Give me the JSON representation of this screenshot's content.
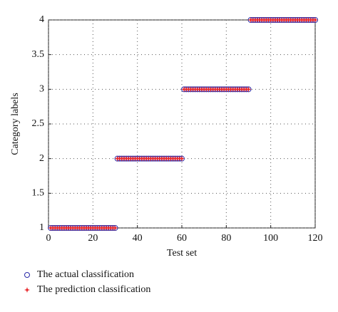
{
  "chart_data": {
    "type": "scatter",
    "x_label": "Test set",
    "y_label": "Category labels",
    "x": [
      1,
      2,
      3,
      4,
      5,
      6,
      7,
      8,
      9,
      10,
      11,
      12,
      13,
      14,
      15,
      16,
      17,
      18,
      19,
      20,
      21,
      22,
      23,
      24,
      25,
      26,
      27,
      28,
      29,
      30,
      31,
      32,
      33,
      34,
      35,
      36,
      37,
      38,
      39,
      40,
      41,
      42,
      43,
      44,
      45,
      46,
      47,
      48,
      49,
      50,
      51,
      52,
      53,
      54,
      55,
      56,
      57,
      58,
      59,
      60,
      61,
      62,
      63,
      64,
      65,
      66,
      67,
      68,
      69,
      70,
      71,
      72,
      73,
      74,
      75,
      76,
      77,
      78,
      79,
      80,
      81,
      82,
      83,
      84,
      85,
      86,
      87,
      88,
      89,
      90,
      91,
      92,
      93,
      94,
      95,
      96,
      97,
      98,
      99,
      100,
      101,
      102,
      103,
      104,
      105,
      106,
      107,
      108,
      109,
      110,
      111,
      112,
      113,
      114,
      115,
      116,
      117,
      118,
      119,
      120
    ],
    "series": [
      {
        "name": "The actual classification",
        "color": "#2a2aa8",
        "marker": "circle",
        "values": [
          1,
          1,
          1,
          1,
          1,
          1,
          1,
          1,
          1,
          1,
          1,
          1,
          1,
          1,
          1,
          1,
          1,
          1,
          1,
          1,
          1,
          1,
          1,
          1,
          1,
          1,
          1,
          1,
          1,
          1,
          2,
          2,
          2,
          2,
          2,
          2,
          2,
          2,
          2,
          2,
          2,
          2,
          2,
          2,
          2,
          2,
          2,
          2,
          2,
          2,
          2,
          2,
          2,
          2,
          2,
          2,
          2,
          2,
          2,
          2,
          3,
          3,
          3,
          3,
          3,
          3,
          3,
          3,
          3,
          3,
          3,
          3,
          3,
          3,
          3,
          3,
          3,
          3,
          3,
          3,
          3,
          3,
          3,
          3,
          3,
          3,
          3,
          3,
          3,
          3,
          4,
          4,
          4,
          4,
          4,
          4,
          4,
          4,
          4,
          4,
          4,
          4,
          4,
          4,
          4,
          4,
          4,
          4,
          4,
          4,
          4,
          4,
          4,
          4,
          4,
          4,
          4,
          4,
          4,
          4
        ]
      },
      {
        "name": "The prediction classification",
        "color": "#e8262a",
        "marker": "star",
        "values": [
          1,
          1,
          1,
          1,
          1,
          1,
          1,
          1,
          1,
          1,
          1,
          1,
          1,
          1,
          1,
          1,
          1,
          1,
          1,
          1,
          1,
          1,
          1,
          1,
          1,
          1,
          1,
          1,
          1,
          1,
          2,
          2,
          2,
          2,
          2,
          2,
          2,
          2,
          2,
          2,
          2,
          2,
          2,
          2,
          2,
          2,
          2,
          2,
          2,
          2,
          2,
          2,
          2,
          2,
          2,
          2,
          2,
          2,
          2,
          2,
          3,
          3,
          3,
          3,
          3,
          3,
          3,
          3,
          3,
          3,
          3,
          3,
          3,
          3,
          3,
          3,
          3,
          3,
          3,
          3,
          3,
          3,
          3,
          3,
          3,
          3,
          3,
          3,
          3,
          3,
          4,
          4,
          4,
          4,
          4,
          4,
          4,
          4,
          4,
          4,
          4,
          4,
          4,
          4,
          4,
          4,
          4,
          4,
          4,
          4,
          4,
          4,
          4,
          4,
          4,
          4,
          4,
          4,
          4,
          4
        ]
      }
    ],
    "xlim": [
      0,
      120
    ],
    "ylim": [
      1,
      4
    ],
    "xticks": [
      0,
      20,
      40,
      60,
      80,
      100,
      120
    ],
    "yticks": [
      1,
      1.5,
      2,
      2.5,
      3,
      3.5,
      4
    ],
    "grid": true
  }
}
